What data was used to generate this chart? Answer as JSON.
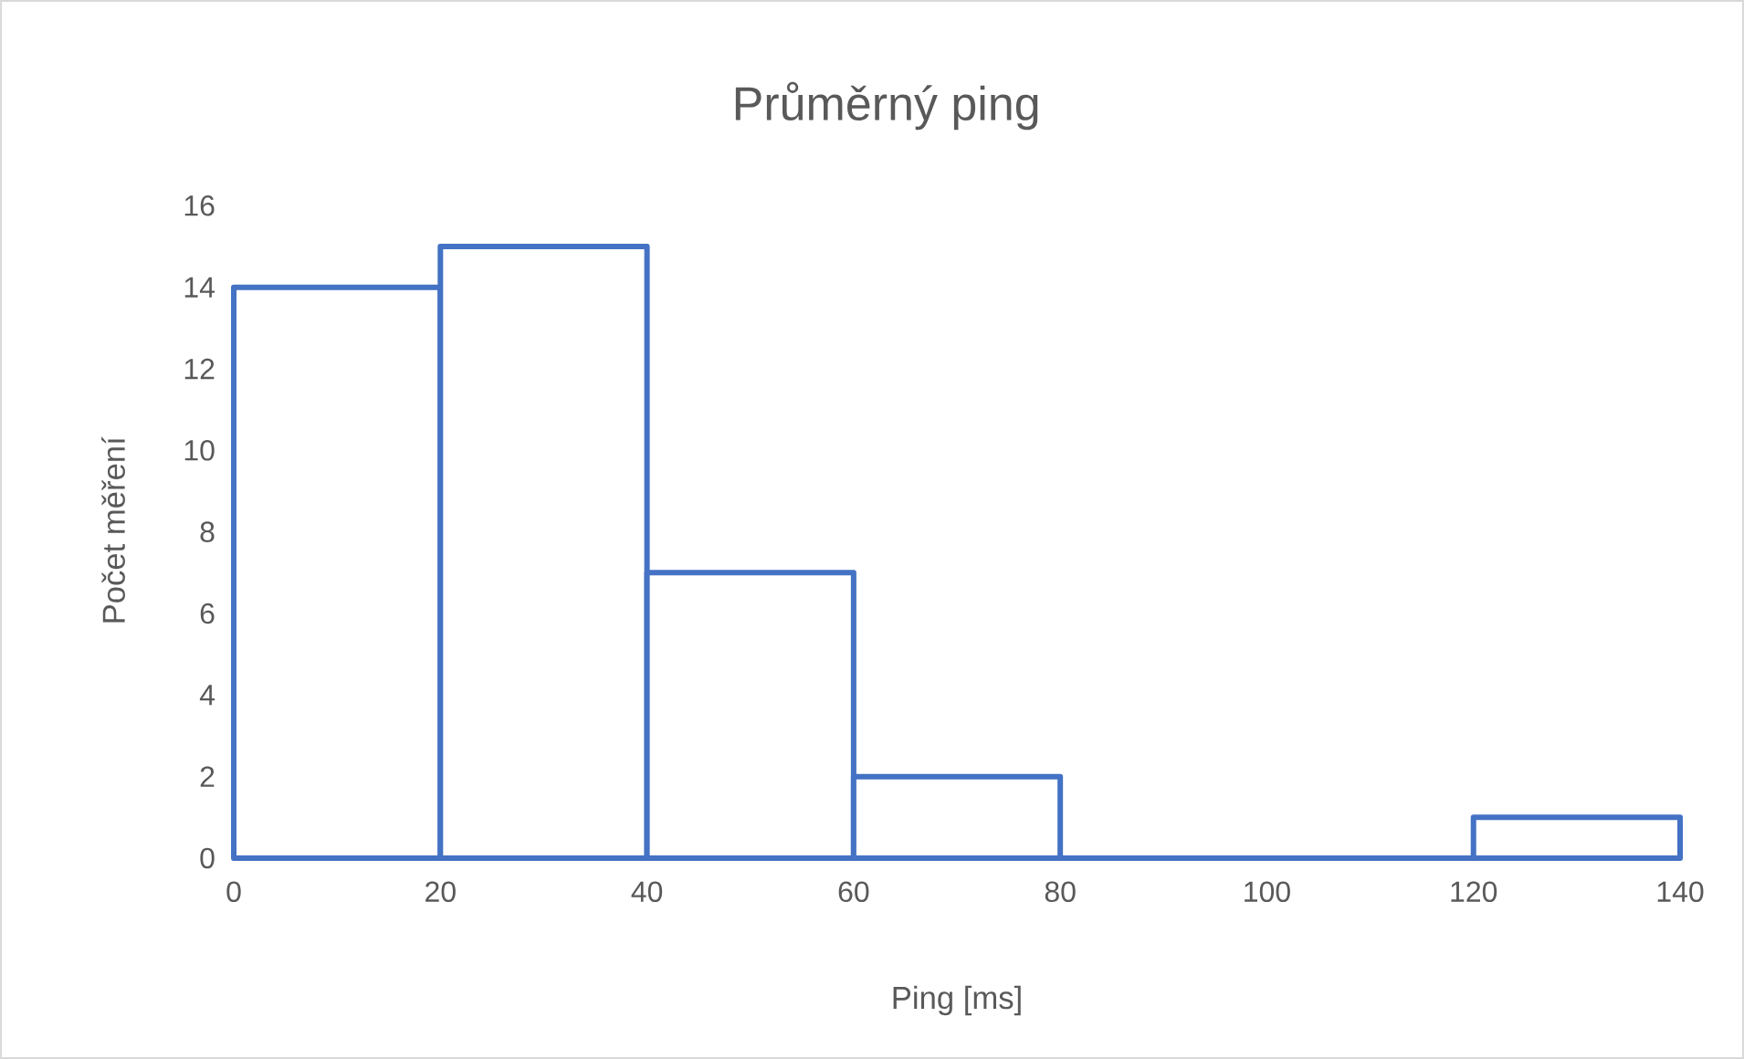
{
  "chart_data": {
    "type": "histogram",
    "title": "Průměrný ping",
    "xlabel": "Ping [ms]",
    "ylabel": "Počet měření",
    "bins": [
      0,
      20,
      40,
      60,
      80,
      100,
      120,
      140
    ],
    "values": [
      14,
      15,
      7,
      2,
      0,
      0,
      1
    ],
    "color": "#4472c4",
    "xlim": [
      0,
      140
    ],
    "xticks": [
      0,
      20,
      40,
      60,
      80,
      100,
      120,
      140
    ],
    "ylim": [
      0,
      16
    ],
    "yticks": [
      0,
      2,
      4,
      6,
      8,
      10,
      12,
      14,
      16
    ]
  }
}
